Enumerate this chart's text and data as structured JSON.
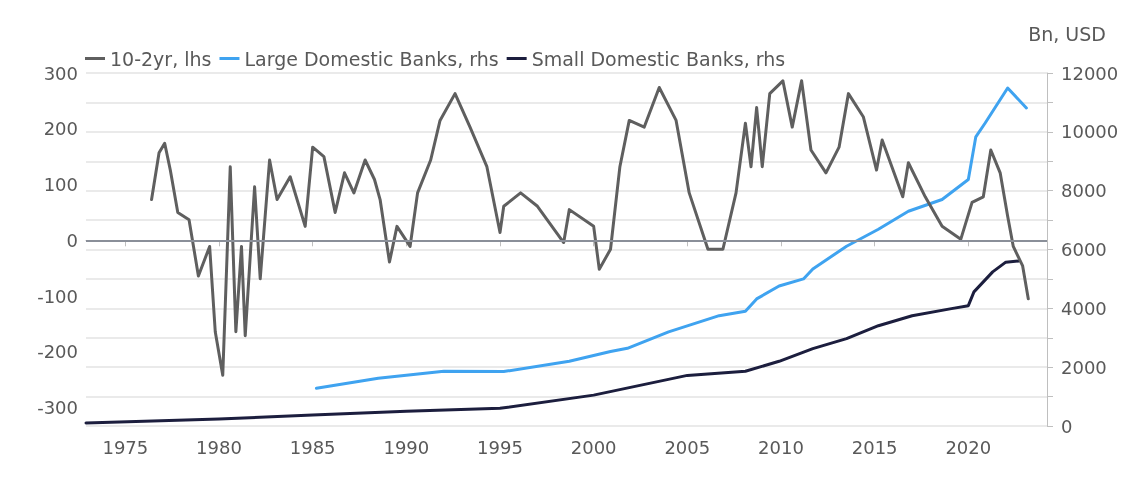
{
  "chart_data": {
    "type": "line",
    "y2label": "Bn, USD",
    "xlim": [
      1972.9,
      2024.2
    ],
    "xticks": [
      1975,
      1980,
      1985,
      1990,
      1995,
      2000,
      2005,
      2010,
      2015,
      2020
    ],
    "ylim": [
      -333,
      300
    ],
    "yticks": [
      -300,
      -200,
      -100,
      0,
      100,
      200,
      300
    ],
    "y2lim": [
      0,
      12000
    ],
    "y2ticks": [
      0,
      {
        "value": 1000,
        "label": null
      },
      2000,
      {
        "value": 3000,
        "label": null
      },
      4000,
      {
        "value": 5000,
        "label": null
      },
      6000,
      {
        "value": 7000,
        "label": null
      },
      8000,
      {
        "value": 9000,
        "label": null
      },
      10000,
      {
        "value": 11000,
        "label": null
      },
      12000
    ],
    "grid": "y",
    "legend": "top left",
    "marker": "none",
    "line_style": "solid",
    "ref_lines": [
      {
        "axis": "y",
        "value": 0,
        "color": "#8a8f99"
      }
    ],
    "series": [
      {
        "name": "10-2yr, lhs",
        "color": "#5f5f5f",
        "x": [
          1976.4,
          1976.8,
          1977.1,
          1977.4,
          1977.8,
          1978.4,
          1978.9,
          1979.5,
          1979.8,
          1980.2,
          1980.6,
          1980.9,
          1981.2,
          1981.4,
          1981.9,
          1982.2,
          1982.7,
          1983.1,
          1983.8,
          1984.6,
          1985.0,
          1985.6,
          1986.2,
          1986.7,
          1987.2,
          1987.8,
          1988.3,
          1988.6,
          1989.1,
          1989.5,
          1990.2,
          1990.6,
          1991.3,
          1991.8,
          1992.6,
          1993.4,
          1994.3,
          1995.0,
          1995.2,
          1996.1,
          1997.0,
          1998.4,
          1998.7,
          2000.0,
          2000.3,
          2000.9,
          2001.4,
          2001.9,
          2002.7,
          2003.5,
          2004.4,
          2005.1,
          2006.1,
          2006.9,
          2007.6,
          2008.1,
          2008.4,
          2008.7,
          2009.0,
          2009.4,
          2010.1,
          2010.6,
          2011.1,
          2011.6,
          2012.4,
          2013.1,
          2013.6,
          2014.4,
          2015.1,
          2015.4,
          2016.5,
          2016.8,
          2017.7,
          2018.6,
          2019.6,
          2020.2,
          2020.8,
          2021.2,
          2021.7,
          2022.1,
          2022.4,
          2022.9,
          2023.2
        ],
        "values": [
          73,
          157,
          174,
          126,
          50,
          37,
          -64,
          -11,
          -164,
          -242,
          132,
          -164,
          -11,
          -171,
          96,
          -69,
          144,
          73,
          114,
          25,
          167,
          150,
          50,
          121,
          85,
          144,
          109,
          73,
          -39,
          25,
          -11,
          85,
          144,
          215,
          263,
          203,
          132,
          14,
          61,
          85,
          61,
          -4,
          55,
          25,
          -52,
          -16,
          132,
          215,
          203,
          274,
          215,
          85,
          -16,
          -16,
          85,
          210,
          132,
          238,
          132,
          263,
          286,
          203,
          286,
          162,
          121,
          167,
          263,
          221,
          126,
          180,
          78,
          139,
          78,
          25,
          2,
          68,
          78,
          162,
          121,
          43,
          -11,
          -46,
          -105
        ]
      },
      {
        "name": "Large Domestic Banks, rhs",
        "color": "#3fa3f0",
        "axis": "y2",
        "x": [
          1985.2,
          1988.5,
          1992.0,
          1995.2,
          1998.7,
          2000.9,
          2001.8,
          2004.0,
          2006.7,
          2008.1,
          2008.7,
          2009.9,
          2011.2,
          2011.7,
          2013.5,
          2015.2,
          2016.8,
          2018.6,
          2020.0,
          2020.4,
          2020.9,
          2022.1,
          2023.1
        ],
        "values": [
          1280,
          1620,
          1860,
          1850,
          2200,
          2530,
          2640,
          3200,
          3750,
          3900,
          4320,
          4760,
          5000,
          5340,
          6110,
          6690,
          7300,
          7700,
          8380,
          9830,
          10300,
          11490,
          10810
        ]
      },
      {
        "name": "Small Domestic Banks, rhs",
        "color": "#1c1e3e",
        "axis": "y2",
        "x": [
          1972.9,
          1980,
          1985,
          1990,
          1995,
          2000,
          2005,
          2008.1,
          2009.9,
          2011.7,
          2013.5,
          2015.2,
          2017.0,
          2019.1,
          2020.0,
          2020.3,
          2021.3,
          2022.0,
          2022.7
        ],
        "values": [
          100,
          240,
          370,
          500,
          600,
          1050,
          1720,
          1860,
          2200,
          2630,
          2970,
          3410,
          3750,
          3990,
          4090,
          4560,
          5240,
          5570,
          5610
        ]
      }
    ]
  }
}
